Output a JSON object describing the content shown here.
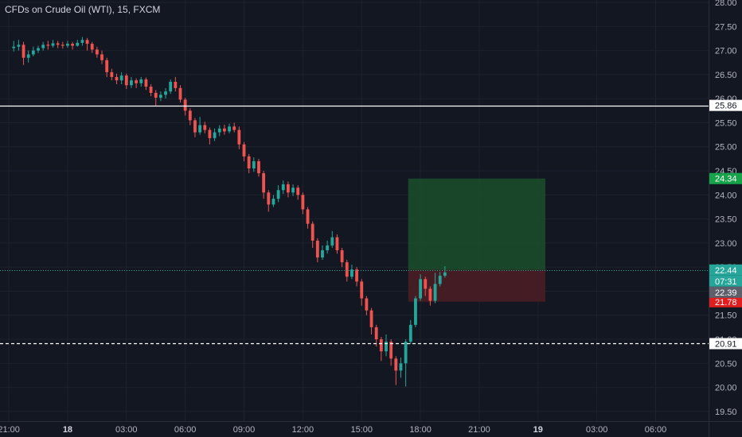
{
  "title": "CFDs on Crude Oil (WTI), 15, FXCM",
  "colors": {
    "background": "#131722",
    "grid": "#1e222d",
    "up": "#26a69a",
    "down": "#ef5350",
    "axis_text": "#b2b5be",
    "target_zone": "#1b4d2a",
    "stop_zone": "#4a1d24",
    "target_label": "#16a34a",
    "stop_label": "#e11d1d",
    "current_price_line": "#26a69a"
  },
  "chart_data": {
    "type": "candlestick",
    "y_ticks": [
      "28.00",
      "27.50",
      "27.00",
      "26.50",
      "26.00",
      "25.50",
      "25.00",
      "24.50",
      "24.00",
      "23.50",
      "23.00",
      "22.50",
      "22.00",
      "21.50",
      "21.00",
      "20.50",
      "20.00",
      "19.50"
    ],
    "ylim": [
      19.3,
      28.05
    ],
    "x_ticks": [
      {
        "label": "21:00",
        "bar": -1,
        "bold": false
      },
      {
        "label": "18",
        "bar": 11,
        "bold": true
      },
      {
        "label": "03:00",
        "bar": 23,
        "bold": false
      },
      {
        "label": "06:00",
        "bar": 35,
        "bold": false
      },
      {
        "label": "09:00",
        "bar": 47,
        "bold": false
      },
      {
        "label": "12:00",
        "bar": 59,
        "bold": false
      },
      {
        "label": "15:00",
        "bar": 71,
        "bold": false
      },
      {
        "label": "18:00",
        "bar": 83,
        "bold": false
      },
      {
        "label": "21:00",
        "bar": 95,
        "bold": false
      },
      {
        "label": "19",
        "bar": 107,
        "bold": true
      },
      {
        "label": "03:00",
        "bar": 119,
        "bold": false
      },
      {
        "label": "06:00",
        "bar": 131,
        "bold": false
      }
    ],
    "xlim": [
      -2.8,
      141.8
    ],
    "candles": [
      [
        27.05,
        27.08,
        27.2,
        26.98
      ],
      [
        27.08,
        27.12,
        27.22,
        27.0
      ],
      [
        27.12,
        26.85,
        27.18,
        26.7
      ],
      [
        26.85,
        26.92,
        27.0,
        26.75
      ],
      [
        26.92,
        27.0,
        27.08,
        26.88
      ],
      [
        27.0,
        27.05,
        27.1,
        26.95
      ],
      [
        27.05,
        27.12,
        27.18,
        27.0
      ],
      [
        27.12,
        27.1,
        27.2,
        27.02
      ],
      [
        27.1,
        27.15,
        27.22,
        27.06
      ],
      [
        27.15,
        27.12,
        27.2,
        27.05
      ],
      [
        27.12,
        27.1,
        27.18,
        27.04
      ],
      [
        27.1,
        27.14,
        27.2,
        27.06
      ],
      [
        27.14,
        27.1,
        27.18,
        27.02
      ],
      [
        27.1,
        27.16,
        27.22,
        27.08
      ],
      [
        27.16,
        27.22,
        27.28,
        27.1
      ],
      [
        27.22,
        27.14,
        27.26,
        27.0
      ],
      [
        27.14,
        27.02,
        27.18,
        26.95
      ],
      [
        27.02,
        26.92,
        27.08,
        26.85
      ],
      [
        26.92,
        26.8,
        27.0,
        26.72
      ],
      [
        26.8,
        26.55,
        26.85,
        26.45
      ],
      [
        26.55,
        26.45,
        26.62,
        26.38
      ],
      [
        26.45,
        26.38,
        26.52,
        26.3
      ],
      [
        26.38,
        26.48,
        26.55,
        26.3
      ],
      [
        26.48,
        26.28,
        26.52,
        26.2
      ],
      [
        26.28,
        26.38,
        26.45,
        26.22
      ],
      [
        26.38,
        26.32,
        26.42,
        26.22
      ],
      [
        26.32,
        26.4,
        26.45,
        26.25
      ],
      [
        26.4,
        26.25,
        26.44,
        26.18
      ],
      [
        26.25,
        26.12,
        26.3,
        26.05
      ],
      [
        26.12,
        26.02,
        26.18,
        25.85
      ],
      [
        26.02,
        26.08,
        26.15,
        25.95
      ],
      [
        26.08,
        26.15,
        26.22,
        26.0
      ],
      [
        26.15,
        26.35,
        26.4,
        26.1
      ],
      [
        26.35,
        26.22,
        26.45,
        26.15
      ],
      [
        26.22,
        25.98,
        26.28,
        25.92
      ],
      [
        25.98,
        25.75,
        26.02,
        25.65
      ],
      [
        25.75,
        25.55,
        25.8,
        25.45
      ],
      [
        25.55,
        25.3,
        25.6,
        25.2
      ],
      [
        25.3,
        25.45,
        25.62,
        25.25
      ],
      [
        25.45,
        25.35,
        25.52,
        25.28
      ],
      [
        25.35,
        25.18,
        25.4,
        25.05
      ],
      [
        25.18,
        25.3,
        25.38,
        25.12
      ],
      [
        25.3,
        25.38,
        25.45,
        25.22
      ],
      [
        25.38,
        25.32,
        25.46,
        25.25
      ],
      [
        25.32,
        25.42,
        25.48,
        25.28
      ],
      [
        25.42,
        25.35,
        25.5,
        25.3
      ],
      [
        25.35,
        25.05,
        25.42,
        24.95
      ],
      [
        25.05,
        24.8,
        25.1,
        24.7
      ],
      [
        24.8,
        24.55,
        24.85,
        24.45
      ],
      [
        24.55,
        24.7,
        24.78,
        24.48
      ],
      [
        24.7,
        24.45,
        24.75,
        24.38
      ],
      [
        24.45,
        24.05,
        24.5,
        23.92
      ],
      [
        24.05,
        23.8,
        24.1,
        23.65
      ],
      [
        23.8,
        23.92,
        24.0,
        23.75
      ],
      [
        23.92,
        24.1,
        24.2,
        23.85
      ],
      [
        24.1,
        24.22,
        24.3,
        24.02
      ],
      [
        24.22,
        24.05,
        24.28,
        23.95
      ],
      [
        24.05,
        24.15,
        24.22,
        23.98
      ],
      [
        24.15,
        24.0,
        24.2,
        23.9
      ],
      [
        24.0,
        23.7,
        24.05,
        23.6
      ],
      [
        23.7,
        23.4,
        23.75,
        23.3
      ],
      [
        23.4,
        23.05,
        23.45,
        22.9
      ],
      [
        23.05,
        22.7,
        23.1,
        22.6
      ],
      [
        22.7,
        22.85,
        22.95,
        22.65
      ],
      [
        22.85,
        22.95,
        23.05,
        22.78
      ],
      [
        22.95,
        23.12,
        23.25,
        22.9
      ],
      [
        23.12,
        22.85,
        23.18,
        22.78
      ],
      [
        22.85,
        22.6,
        22.9,
        22.5
      ],
      [
        22.6,
        22.3,
        22.65,
        22.2
      ],
      [
        22.3,
        22.45,
        22.55,
        22.25
      ],
      [
        22.45,
        22.2,
        22.5,
        22.1
      ],
      [
        22.2,
        21.85,
        22.25,
        21.7
      ],
      [
        21.85,
        21.6,
        21.9,
        21.5
      ],
      [
        21.6,
        21.25,
        21.65,
        21.1
      ],
      [
        21.25,
        21.0,
        21.3,
        20.85
      ],
      [
        21.0,
        20.75,
        21.05,
        20.55
      ],
      [
        20.75,
        20.95,
        21.1,
        20.65
      ],
      [
        20.95,
        20.6,
        21.0,
        20.45
      ],
      [
        20.6,
        20.35,
        20.65,
        20.05
      ],
      [
        20.35,
        20.5,
        20.62,
        20.2
      ],
      [
        20.5,
        20.95,
        21.0,
        20.02
      ],
      [
        20.95,
        21.3,
        21.4,
        20.9
      ],
      [
        21.3,
        21.85,
        21.9,
        21.25
      ],
      [
        21.85,
        22.25,
        22.35,
        21.8
      ],
      [
        22.25,
        22.05,
        22.3,
        21.9
      ],
      [
        22.05,
        21.8,
        22.1,
        21.7
      ],
      [
        21.8,
        22.15,
        22.38,
        21.75
      ],
      [
        22.15,
        22.32,
        22.4,
        22.1
      ],
      [
        22.32,
        22.39,
        22.52,
        22.28
      ]
    ],
    "horizontal_lines": [
      {
        "price": 25.86,
        "style": "solid",
        "color": "#ffffff",
        "label": "25.86"
      },
      {
        "price": 20.91,
        "style": "dashed",
        "color": "#ffffff",
        "label": "20.91"
      }
    ],
    "current_price": {
      "price": 22.44,
      "label": "22.44",
      "countdown": "07:31"
    },
    "last_price": {
      "price": 22.39,
      "label": "22.39"
    },
    "position": {
      "entry": 22.44,
      "target": 24.34,
      "stop": 21.78,
      "target_label": "24.34",
      "stop_label": "21.78",
      "start_bar": 80.5,
      "end_bar": 108.5
    }
  }
}
